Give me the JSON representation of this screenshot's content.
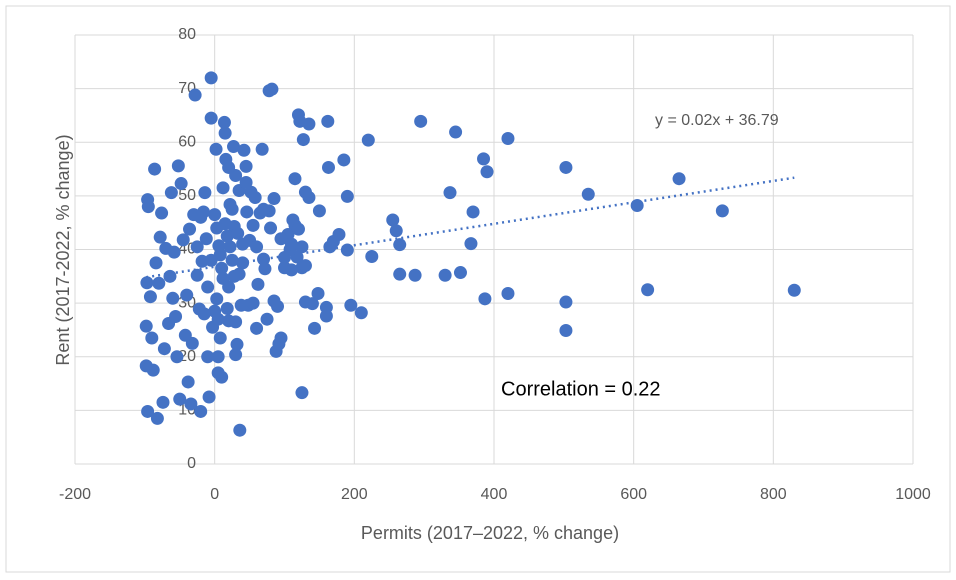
{
  "chart_data": {
    "type": "scatter",
    "x_label": "Permits (2017–2022, % change)",
    "y_label": "Rent (2017-2022, % change)",
    "annotation": "Correlation = 0.22",
    "trendline": {
      "label": "y = 0.02x + 36.79",
      "slope": 0.02,
      "intercept": 36.79,
      "color": "#4472c4"
    },
    "color": "#4472c4",
    "x": [
      830,
      727,
      665,
      620,
      605,
      535,
      503,
      503,
      503,
      420,
      420,
      390,
      385,
      387,
      370,
      367,
      352,
      345,
      337,
      330,
      295,
      287,
      265,
      265,
      260,
      255,
      225,
      220,
      210,
      195,
      190,
      190,
      185,
      178,
      170,
      165,
      163,
      162,
      160,
      160,
      150,
      148,
      143,
      135,
      135,
      130,
      130,
      127,
      125,
      125,
      122,
      120,
      118,
      115,
      115,
      112,
      110,
      108,
      105,
      100,
      95,
      92,
      90,
      88,
      85,
      85,
      82,
      78,
      78,
      75,
      72,
      70,
      68,
      65,
      62,
      60,
      58,
      55,
      52,
      50,
      48,
      46,
      45,
      42,
      40,
      38,
      36,
      35,
      32,
      30,
      30,
      28,
      27,
      25,
      22,
      20,
      20,
      18,
      16,
      15,
      14,
      12,
      10,
      8,
      6,
      5,
      3,
      2,
      0,
      -3,
      -5,
      -5,
      -8,
      -10,
      -12,
      -14,
      -16,
      -18,
      -20,
      -22,
      -25,
      -28,
      -30,
      -32,
      -34,
      -36,
      -38,
      -40,
      -42,
      -45,
      -48,
      -50,
      -52,
      -54,
      -56,
      -58,
      -60,
      -62,
      -64,
      -66,
      -70,
      -72,
      -74,
      -76,
      -78,
      -80,
      -82,
      -84,
      -86,
      -88,
      -90,
      -92,
      -95,
      -96,
      -97,
      -98,
      -98,
      -96,
      5,
      10,
      15,
      20,
      25,
      30,
      35,
      40,
      12,
      8,
      18,
      22,
      28,
      33,
      3,
      -5,
      -10,
      -15,
      -20,
      -25,
      0,
      5,
      45,
      55,
      60,
      70,
      80,
      95,
      100,
      110,
      120,
      125,
      130,
      140
    ],
    "values": [
      32.4,
      47.2,
      53.2,
      32.5,
      48.2,
      50.3,
      55.3,
      30.2,
      24.9,
      60.7,
      31.8,
      54.5,
      56.9,
      30.8,
      47,
      41.1,
      35.7,
      61.9,
      50.6,
      35.2,
      63.9,
      35.2,
      35.4,
      40.9,
      43.5,
      45.5,
      38.7,
      60.4,
      28.2,
      29.6,
      39.9,
      49.9,
      56.7,
      42.8,
      41.5,
      40.5,
      55.3,
      63.9,
      27.6,
      29.2,
      47.2,
      31.8,
      25.3,
      49.7,
      63.4,
      30.2,
      50.7,
      60.5,
      13.3,
      36.6,
      63.9,
      65.1,
      38.6,
      44.5,
      53.2,
      45.5,
      36.2,
      40,
      42.8,
      36.6,
      23.5,
      22.4,
      29.4,
      21,
      30.4,
      49.5,
      69.9,
      69.6,
      47.2,
      27,
      36.4,
      38.2,
      58.7,
      46.8,
      33.5,
      25.3,
      49.7,
      44.5,
      50.7,
      41.7,
      29.6,
      47,
      55.5,
      58.5,
      41,
      29.6,
      6.3,
      35.4,
      22.3,
      53.8,
      20.4,
      44.3,
      59.2,
      38,
      48.4,
      26.7,
      55.3,
      42.5,
      56.8,
      61.7,
      63.7,
      34.6,
      16.2,
      23.5,
      40.7,
      17,
      30.8,
      58.7,
      46.5,
      25.5,
      64.5,
      72,
      12.5,
      20,
      42,
      50.6,
      47,
      37.8,
      9.8,
      28.9,
      35.2,
      68.8,
      46.5,
      22.5,
      11.2,
      43.8,
      15.3,
      31.5,
      24,
      41.8,
      52.3,
      12.1,
      55.6,
      20,
      27.5,
      39.5,
      30.9,
      50.6,
      35,
      26.2,
      40.2,
      21.5,
      11.5,
      46.8,
      42.3,
      33.7,
      8.5,
      37.5,
      55,
      17.5,
      23.5,
      31.2,
      48,
      49.3,
      33.8,
      25.7,
      18.3,
      9.8,
      27,
      36.5,
      44.8,
      33,
      47.5,
      26.5,
      51,
      37.5,
      51.5,
      39,
      29,
      40.5,
      35,
      43,
      44,
      38,
      33,
      28,
      46,
      40.5,
      28.5,
      20,
      52.5,
      30,
      40.5,
      47.5,
      44,
      42,
      38.5,
      41,
      43.8,
      40.5,
      37,
      29.9
    ],
    "xlim": [
      -200,
      1000
    ],
    "xticks": [
      -200,
      0,
      200,
      400,
      600,
      800,
      1000
    ],
    "ylim": [
      0,
      80
    ],
    "yticks": [
      0,
      10,
      20,
      30,
      40,
      50,
      60,
      70,
      80
    ],
    "grid": true
  }
}
